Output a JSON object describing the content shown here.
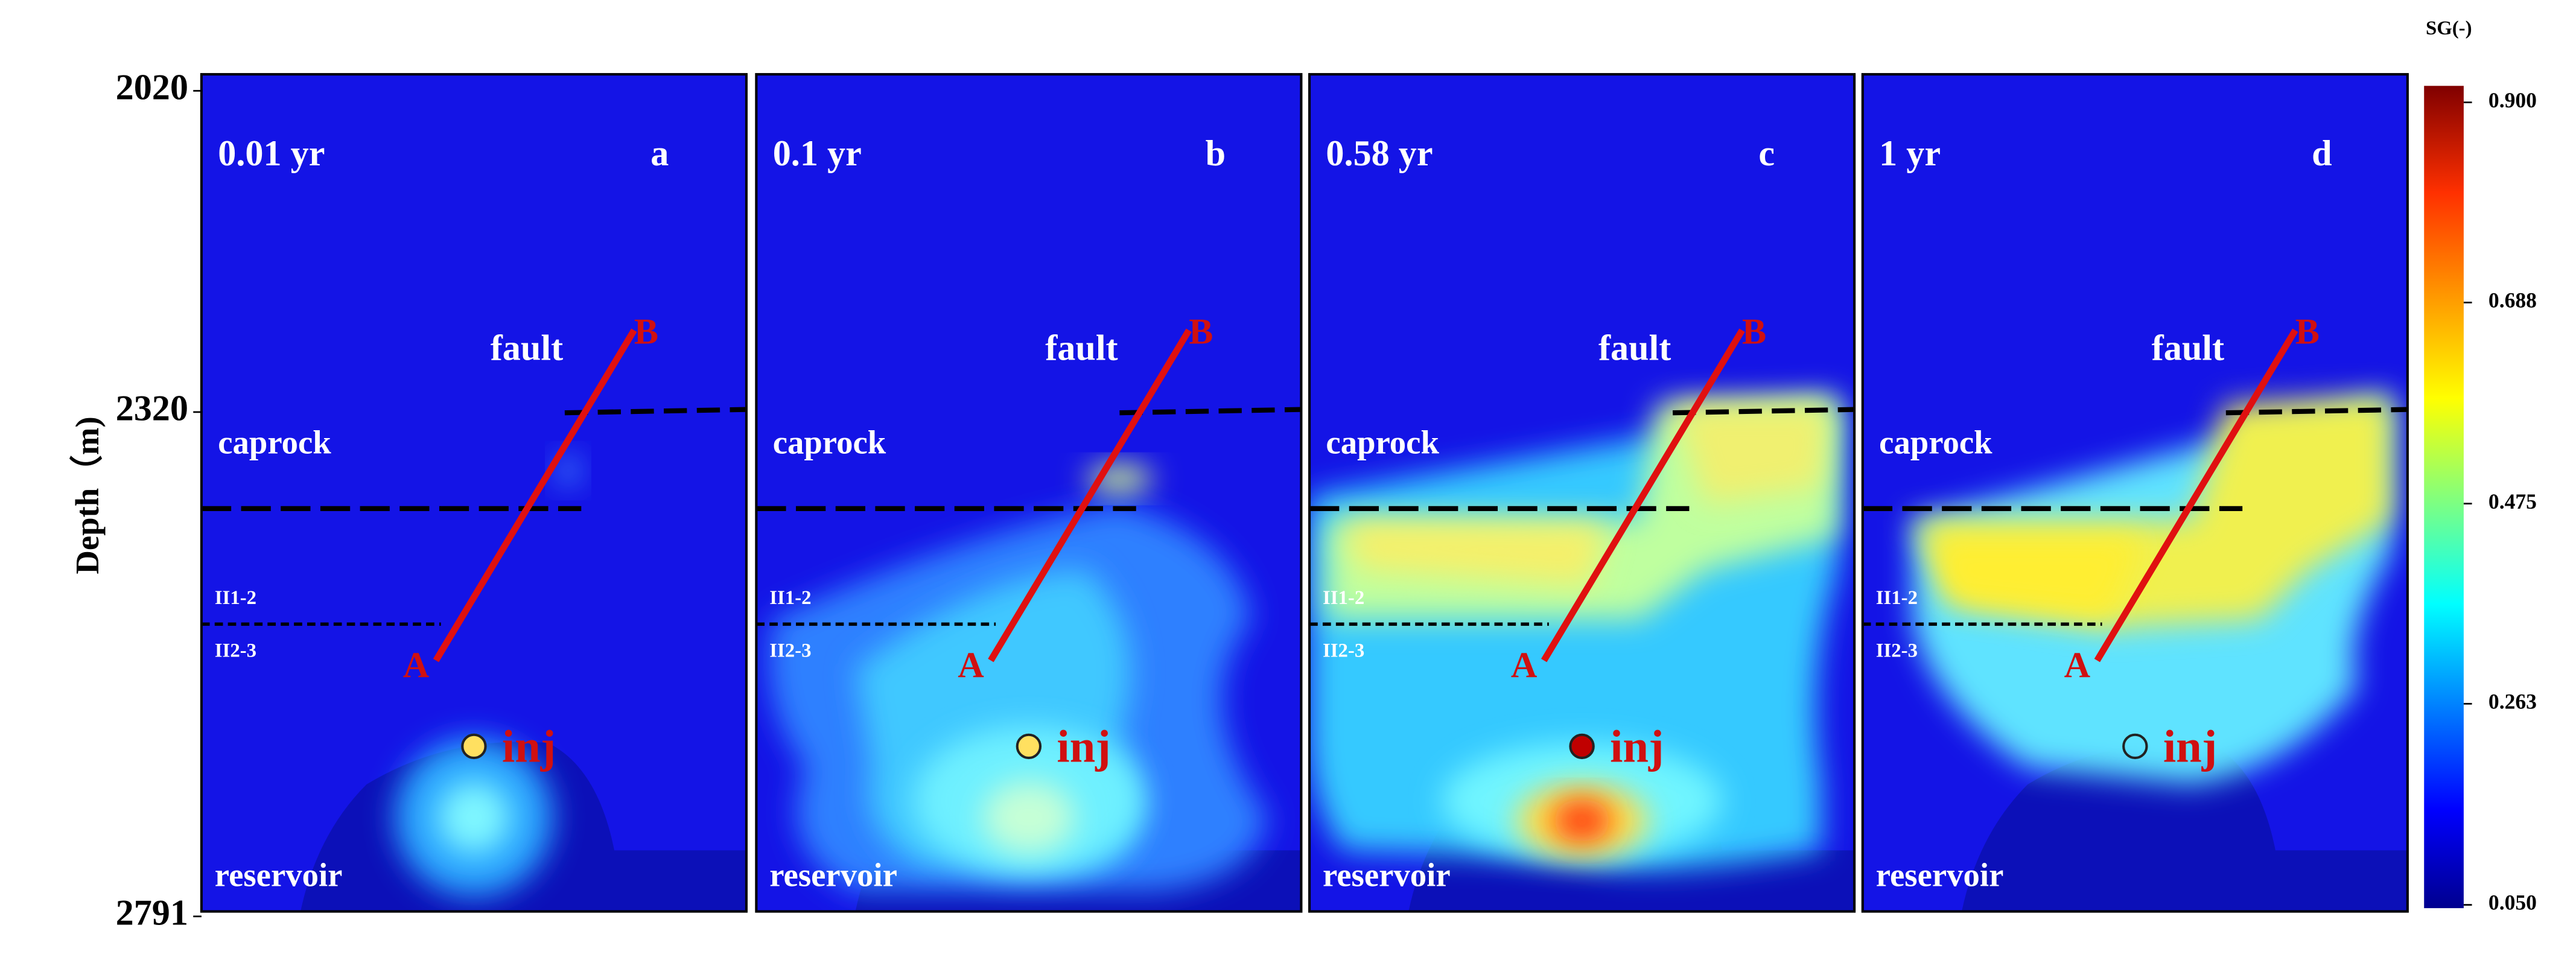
{
  "chart_data": {
    "type": "contour",
    "y_label": "Depth（m)",
    "ylim": [
      2020,
      2791
    ],
    "yticks": [
      2020,
      2320,
      2791
    ],
    "colorbar": {
      "title": "SG(-)",
      "lim": [
        0.05,
        0.9
      ],
      "ticks": [
        {
          "value": 0.05,
          "label": "0.050"
        },
        {
          "value": 0.263,
          "label": "0.263"
        },
        {
          "value": 0.475,
          "label": "0.475"
        },
        {
          "value": 0.688,
          "label": "0.688"
        },
        {
          "value": 0.9,
          "label": "0.900"
        }
      ]
    },
    "panels": [
      {
        "time": "0.01 yr",
        "letter": "a"
      },
      {
        "time": "0.1 yr",
        "letter": "b"
      },
      {
        "time": "0.58 yr",
        "letter": "c"
      },
      {
        "time": "1 yr",
        "letter": "d"
      }
    ],
    "annotations": {
      "fault": "fault",
      "caprock": "caprock",
      "layer_upper": "II1-2",
      "layer_lower": "II2-3",
      "reservoir": "reservoir",
      "injection": "inj",
      "fault_bottom": "A",
      "fault_top": "B"
    }
  }
}
